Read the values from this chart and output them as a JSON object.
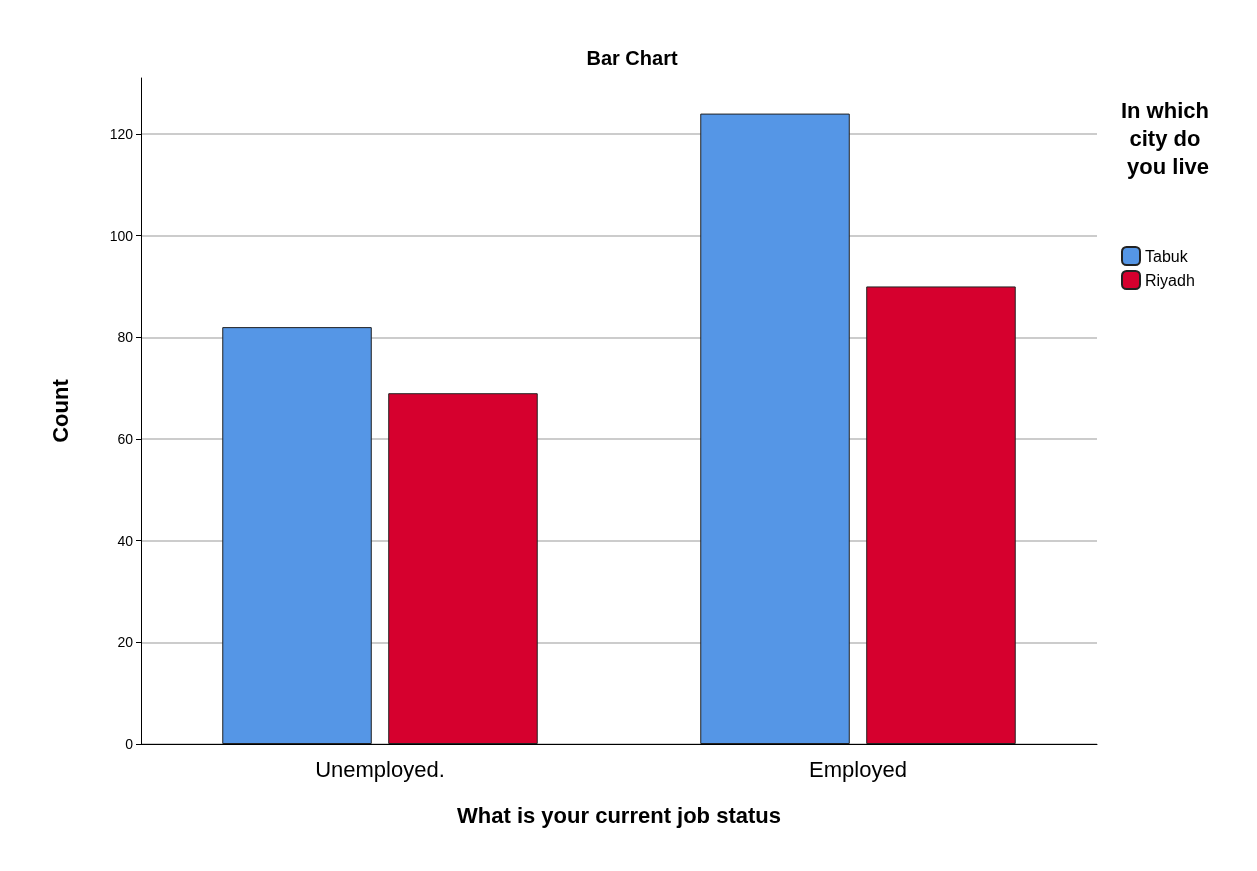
{
  "chart_data": {
    "type": "bar",
    "title": "Bar Chart",
    "xlabel": "What is your current job status",
    "ylabel": "Count",
    "legend_title": "In which city do you live",
    "categories": [
      "Unemployed.",
      "Employed"
    ],
    "series": [
      {
        "name": "Tabuk",
        "color": "#5596e6",
        "values": [
          82,
          124
        ]
      },
      {
        "name": "Riyadh",
        "color": "#d6002e",
        "values": [
          69,
          90
        ]
      }
    ],
    "ylim": [
      0,
      131
    ],
    "yticks": [
      0,
      20,
      40,
      60,
      80,
      100,
      120
    ],
    "grid": "y",
    "legend": "top right"
  }
}
